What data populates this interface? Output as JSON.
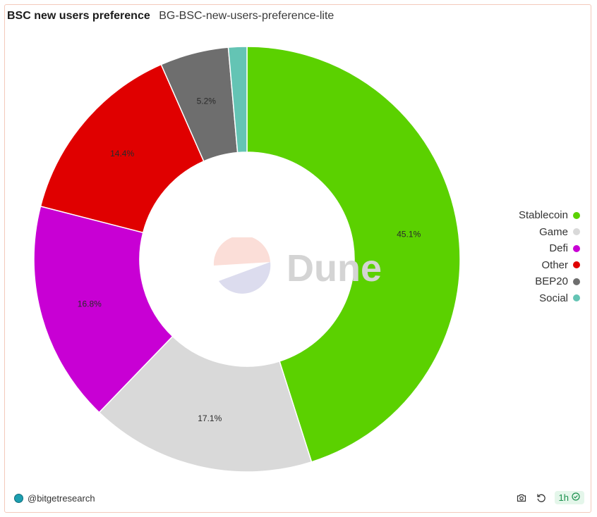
{
  "header": {
    "title": "BSC new users preference",
    "subtitle": "BG-BSC-new-users-preference-lite"
  },
  "chart_data": {
    "type": "pie",
    "donut": true,
    "categories": [
      "Stablecoin",
      "Game",
      "Defi",
      "Other",
      "BEP20",
      "Social"
    ],
    "values": [
      45.1,
      17.1,
      16.8,
      14.4,
      5.2,
      1.4
    ],
    "labels": [
      "45.1%",
      "17.1%",
      "16.8%",
      "14.4%",
      "5.2%",
      ""
    ],
    "colors": [
      "#5bd100",
      "#d9d9d9",
      "#c800d4",
      "#e00000",
      "#6e6e6e",
      "#64c4b4"
    ],
    "legend_position": "right"
  },
  "watermark": {
    "text": "Dune"
  },
  "footer": {
    "author": "@bitgetresearch",
    "refresh_label": "1h",
    "icons": [
      "camera-icon",
      "refresh-icon",
      "check-circle-icon"
    ]
  }
}
